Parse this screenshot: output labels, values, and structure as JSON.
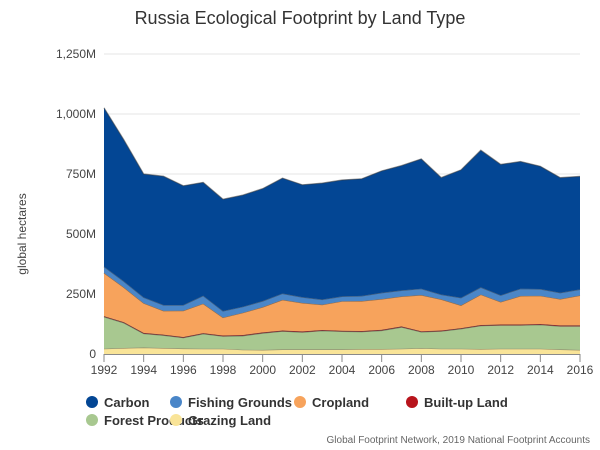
{
  "chart_data": {
    "type": "area",
    "stacked": true,
    "title": "Russia Ecological Footprint by Land Type",
    "credit": "Global Footprint Network, 2019 National Footprint Accounts",
    "ylabel": "global hectares",
    "xlabel": "",
    "ylim": [
      0,
      1250
    ],
    "y_tick_values": [
      0,
      250,
      500,
      750,
      1000,
      1250
    ],
    "y_tick_labels": [
      "0",
      "250M",
      "500M",
      "750M",
      "1,000M",
      "1,250M"
    ],
    "x": [
      1992,
      1993,
      1994,
      1995,
      1996,
      1997,
      1998,
      1999,
      2000,
      2001,
      2002,
      2003,
      2004,
      2005,
      2006,
      2007,
      2008,
      2009,
      2010,
      2011,
      2012,
      2013,
      2014,
      2015,
      2016
    ],
    "x_tick_labels": [
      "1992",
      "1994",
      "1996",
      "1998",
      "2000",
      "2002",
      "2004",
      "2006",
      "2008",
      "2010",
      "2012",
      "2014",
      "2016"
    ],
    "grid": "horizontal",
    "legend_position": "bottom",
    "series": [
      {
        "name": "Grazing Land",
        "color": "#f9e498",
        "values": [
          22,
          25,
          27,
          25,
          23,
          22,
          22,
          18,
          17,
          19,
          19,
          19,
          19,
          21,
          21,
          22,
          24,
          22,
          22,
          21,
          22,
          22,
          22,
          19,
          17
        ]
      },
      {
        "name": "Forest Products",
        "color": "#a8c890",
        "values": [
          133,
          105,
          58,
          53,
          45,
          62,
          52,
          58,
          70,
          76,
          72,
          78,
          75,
          72,
          77,
          90,
          68,
          73,
          83,
          97,
          98,
          98,
          100,
          97,
          99
        ]
      },
      {
        "name": "Built-up Land",
        "color": "#b8141c",
        "values": [
          3,
          3,
          3,
          3,
          3,
          3,
          3,
          3,
          3,
          3,
          3,
          3,
          3,
          3,
          3,
          3,
          3,
          3,
          3,
          3,
          3,
          3,
          3,
          3,
          3
        ]
      },
      {
        "name": "Cropland",
        "color": "#f7a35c",
        "values": [
          180,
          145,
          124,
          99,
          110,
          123,
          75,
          93,
          106,
          128,
          119,
          106,
          123,
          125,
          128,
          125,
          151,
          130,
          95,
          127,
          94,
          119,
          118,
          110,
          125
        ]
      },
      {
        "name": "Fishing Grounds",
        "color": "#4a86c8",
        "values": [
          26,
          25,
          24,
          24,
          23,
          33,
          27,
          25,
          25,
          26,
          24,
          21,
          20,
          21,
          26,
          25,
          26,
          20,
          31,
          30,
          28,
          30,
          28,
          26,
          25
        ]
      },
      {
        "name": "Carbon",
        "color": "#034694",
        "values": [
          662,
          590,
          514,
          537,
          497,
          472,
          466,
          465,
          468,
          481,
          468,
          485,
          485,
          488,
          508,
          520,
          541,
          487,
          533,
          571,
          545,
          530,
          511,
          480,
          471
        ]
      }
    ],
    "legend_order": [
      "Carbon",
      "Fishing Grounds",
      "Cropland",
      "Built-up Land",
      "Forest Products",
      "Grazing Land"
    ],
    "axis_line_color": "#8a8a8a",
    "grid_color": "#e6e6e6"
  }
}
